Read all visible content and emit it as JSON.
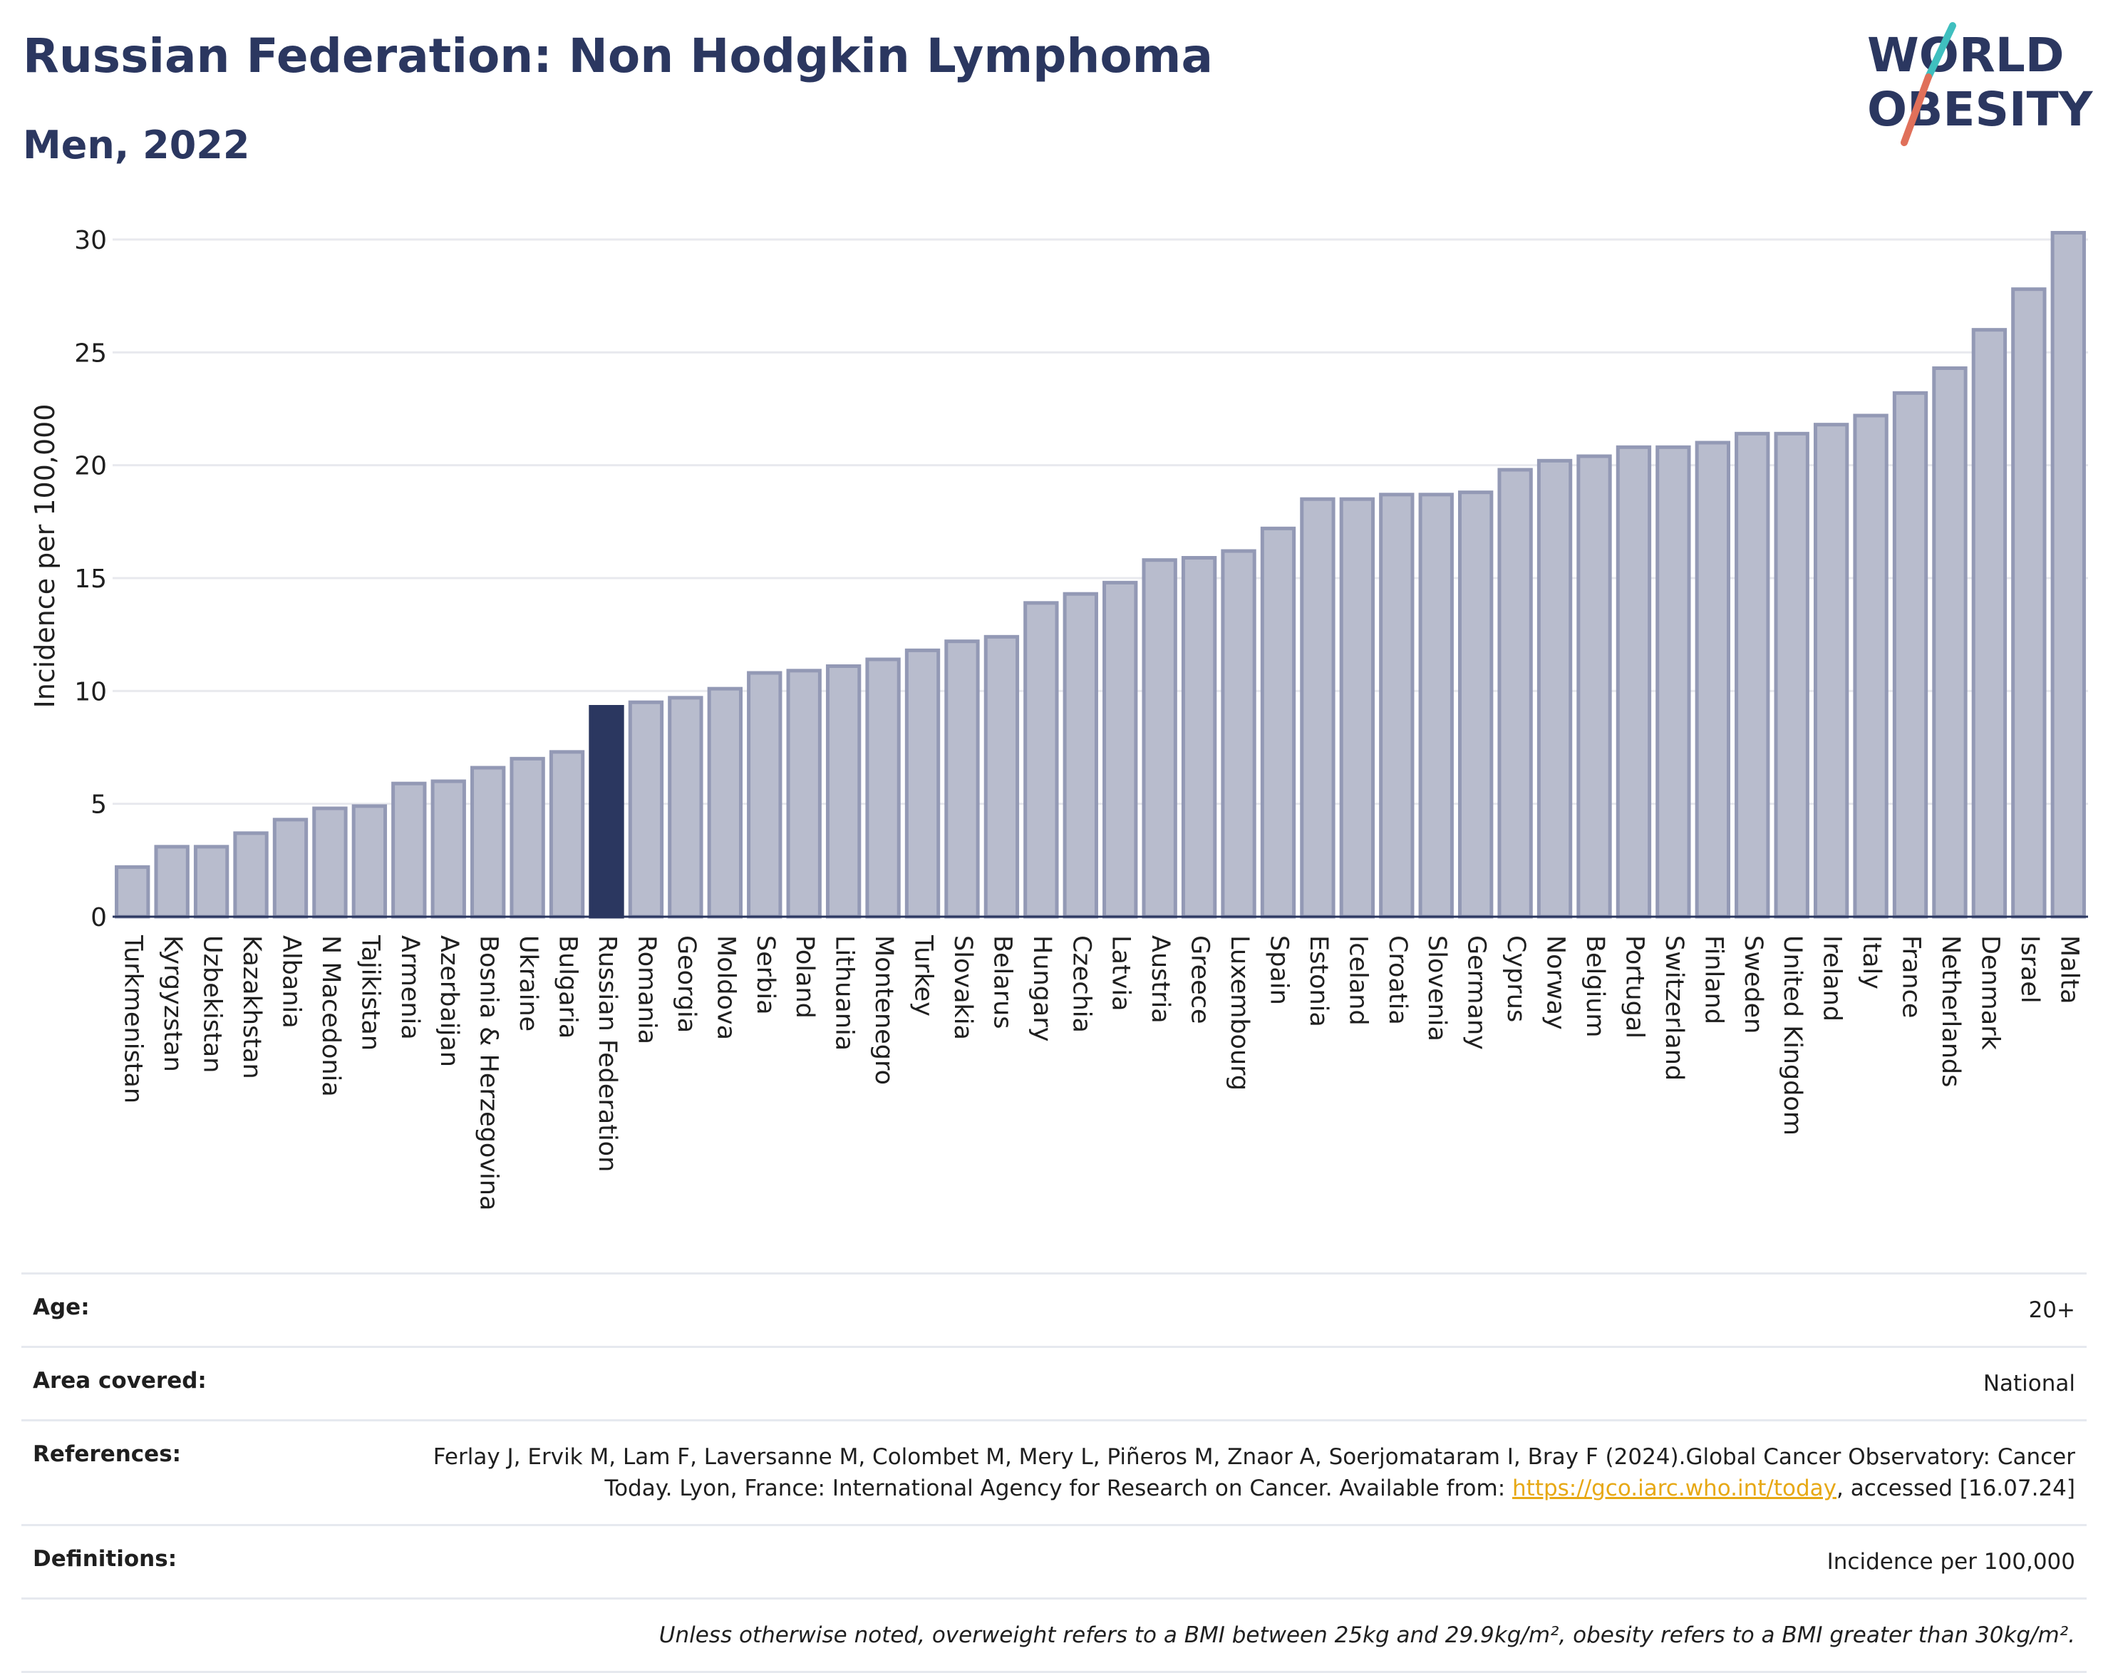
{
  "header": {
    "title": "Russian Federation: Non Hodgkin Lymphoma",
    "subtitle": "Men, 2022"
  },
  "logo": {
    "line1": "WORLD",
    "line2": "OBESITY",
    "accent_colors": [
      "#3fbfbf",
      "#e0705a"
    ]
  },
  "chart_data": {
    "type": "bar",
    "title": "Russian Federation: Non Hodgkin Lymphoma",
    "subtitle": "Men, 2022",
    "xlabel": "",
    "ylabel": "Incidence per 100,000",
    "ylim": [
      0,
      31
    ],
    "yticks": [
      0,
      5,
      10,
      15,
      20,
      25,
      30
    ],
    "grid": true,
    "highlight": "Russian Federation",
    "colors": {
      "default": "#b8bccd",
      "default_stroke": "#9399b5",
      "highlight": "#2b3760"
    },
    "categories": [
      "Turkmenistan",
      "Kyrgyzstan",
      "Uzbekistan",
      "Kazakhstan",
      "Albania",
      "N Macedonia",
      "Tajikistan",
      "Armenia",
      "Azerbaijan",
      "Bosnia & Herzegovina",
      "Ukraine",
      "Bulgaria",
      "Russian Federation",
      "Romania",
      "Georgia",
      "Moldova",
      "Serbia",
      "Poland",
      "Lithuania",
      "Montenegro",
      "Turkey",
      "Slovakia",
      "Belarus",
      "Hungary",
      "Czechia",
      "Latvia",
      "Austria",
      "Greece",
      "Luxembourg",
      "Spain",
      "Estonia",
      "Iceland",
      "Croatia",
      "Slovenia",
      "Germany",
      "Cyprus",
      "Norway",
      "Belgium",
      "Portugal",
      "Switzerland",
      "Finland",
      "Sweden",
      "United Kingdom",
      "Ireland",
      "Italy",
      "France",
      "Netherlands",
      "Denmark",
      "Israel",
      "Malta"
    ],
    "values": [
      2.2,
      3.1,
      3.1,
      3.7,
      4.3,
      4.8,
      4.9,
      5.9,
      6.0,
      6.6,
      7.0,
      7.3,
      9.3,
      9.5,
      9.7,
      10.1,
      10.8,
      10.9,
      11.1,
      11.4,
      11.8,
      12.2,
      12.4,
      13.9,
      14.3,
      14.8,
      15.8,
      15.9,
      16.2,
      17.2,
      18.5,
      18.5,
      18.7,
      18.7,
      18.8,
      19.8,
      20.2,
      20.4,
      20.8,
      20.8,
      21.0,
      21.4,
      21.4,
      21.8,
      22.2,
      23.2,
      24.3,
      26.0,
      27.8,
      30.3
    ]
  },
  "metadata": {
    "age_label": "Age:",
    "age_value": "20+",
    "area_label": "Area covered:",
    "area_value": "National",
    "references_label": "References:",
    "references_text": "Ferlay J, Ervik M, Lam F, Laversanne M, Colombet M, Mery L, Piñeros M, Znaor A, Soerjomataram I, Bray F (2024).Global Cancer Observatory: Cancer Today. Lyon, France: International Agency for Research on Cancer. Available from: ",
    "references_link": "https://gco.iarc.who.int/today",
    "references_suffix": ", accessed [16.07.24]",
    "definitions_label": "Definitions:",
    "definitions_value": "Incidence per 100,000",
    "note": "Unless otherwise noted, overweight refers to a BMI between 25kg and 29.9kg/m², obesity refers to a BMI greater than 30kg/m²."
  }
}
